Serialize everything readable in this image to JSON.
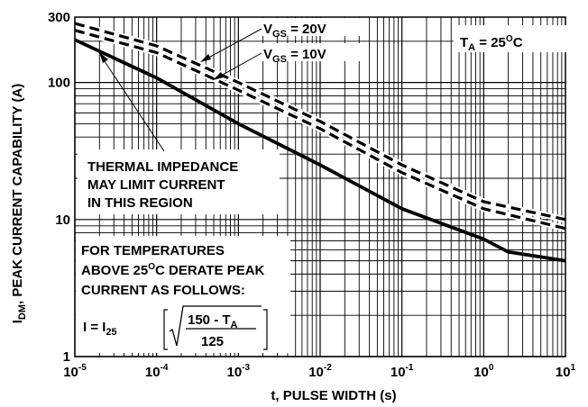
{
  "chart_data": {
    "type": "line",
    "x_scale": "log",
    "y_scale": "log",
    "xlim": [
      1e-05,
      10
    ],
    "ylim": [
      1,
      300
    ],
    "xlabel": "t, PULSE WIDTH (s)",
    "ylabel_main": "I",
    "ylabel_sub": "DM",
    "ylabel_rest": ", PEAK CURRENT CAPABILITY (A)",
    "x_ticks": [
      {
        "value": 1e-05,
        "base": "10",
        "exp": "-5"
      },
      {
        "value": 0.0001,
        "base": "10",
        "exp": "-4"
      },
      {
        "value": 0.001,
        "base": "10",
        "exp": "-3"
      },
      {
        "value": 0.01,
        "base": "10",
        "exp": "-2"
      },
      {
        "value": 0.1,
        "base": "10",
        "exp": "-1"
      },
      {
        "value": 1,
        "base": "10",
        "exp": "0"
      },
      {
        "value": 10,
        "base": "10",
        "exp": "1"
      }
    ],
    "y_ticks": [
      {
        "value": 1,
        "label": "1"
      },
      {
        "value": 10,
        "label": "10"
      },
      {
        "value": 100,
        "label": "100"
      },
      {
        "value": 300,
        "label": "300"
      }
    ],
    "grid": true,
    "series": [
      {
        "name": "V_GS = 20V",
        "style": "dashed",
        "x": [
          1e-05,
          0.0001,
          0.001,
          0.01,
          0.1,
          1,
          10
        ],
        "y": [
          270,
          185,
          100,
          52,
          25,
          13.5,
          10
        ]
      },
      {
        "name": "V_GS = 10V",
        "style": "dashed",
        "x": [
          1e-05,
          0.0001,
          0.001,
          0.01,
          0.1,
          1,
          10
        ],
        "y": [
          240,
          165,
          88,
          46,
          22,
          12,
          8.6
        ]
      },
      {
        "name": "",
        "style": "solid",
        "x": [
          1e-05,
          0.0001,
          0.001,
          0.01,
          0.1,
          1,
          2,
          10
        ],
        "y": [
          205,
          108,
          50,
          25,
          12,
          7.2,
          5.8,
          5
        ]
      }
    ],
    "annotations": {
      "vgs20_main": "V",
      "vgs20_sub": "GS",
      "vgs20_rest": " = 20V",
      "vgs10_main": "V",
      "vgs10_sub": "GS",
      "vgs10_rest": " = 10V",
      "ta_main": "T",
      "ta_sub": "A",
      "ta_rest": " = 25",
      "ta_sup": "O",
      "ta_unit": "C",
      "thermal_line1": "THERMAL IMPEDANCE",
      "thermal_line2": "MAY LIMIT CURRENT",
      "thermal_line3": "IN THIS REGION",
      "derate_line1": "FOR TEMPERATURES",
      "derate_line2a": "ABOVE 25",
      "derate_line2_sup": "O",
      "derate_line2b": "C DERATE PEAK",
      "derate_line3": "CURRENT AS FOLLOWS:",
      "formula_lhs": "I = I",
      "formula_sub": "25",
      "formula_num_main": "150 - T",
      "formula_num_sub": "A",
      "formula_den": "125"
    }
  }
}
